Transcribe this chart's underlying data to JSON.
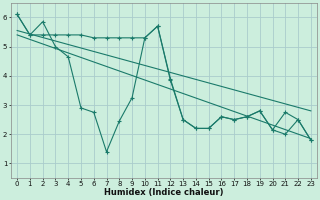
{
  "bg_color": "#cceedd",
  "grid_color": "#aacccc",
  "line_color": "#1a7a6a",
  "xlabel": "Humidex (Indice chaleur)",
  "xlim": [
    -0.5,
    23.5
  ],
  "ylim": [
    0.5,
    6.5
  ],
  "yticks": [
    1,
    2,
    3,
    4,
    5,
    6
  ],
  "xticks": [
    0,
    1,
    2,
    3,
    4,
    5,
    6,
    7,
    8,
    9,
    10,
    11,
    12,
    13,
    14,
    15,
    16,
    17,
    18,
    19,
    20,
    21,
    22,
    23
  ],
  "line1_x": [
    0,
    1,
    2,
    3,
    4,
    5,
    6,
    7,
    8,
    9,
    10,
    11,
    12,
    13,
    14,
    15,
    16,
    17,
    18,
    19,
    20,
    21,
    22,
    23
  ],
  "line1_y": [
    6.1,
    5.4,
    5.4,
    5.4,
    5.4,
    5.4,
    5.3,
    5.3,
    5.3,
    5.3,
    5.3,
    5.7,
    3.9,
    2.5,
    2.2,
    2.2,
    2.6,
    2.5,
    2.6,
    2.8,
    2.15,
    2.0,
    2.5,
    1.8
  ],
  "line2_x": [
    0,
    1,
    2,
    3,
    4,
    5,
    6,
    7,
    8,
    9,
    10,
    11,
    12,
    13,
    14,
    15,
    16,
    17,
    18,
    19,
    20,
    21,
    22,
    23
  ],
  "line2_y": [
    6.1,
    5.4,
    5.85,
    5.0,
    4.65,
    2.9,
    2.75,
    1.4,
    2.45,
    3.25,
    5.3,
    5.7,
    3.85,
    2.5,
    2.2,
    2.2,
    2.6,
    2.5,
    2.6,
    2.8,
    2.15,
    2.75,
    2.5,
    1.8
  ],
  "trend1_x": [
    0,
    23
  ],
  "trend1_y": [
    5.55,
    2.8
  ],
  "trend2_x": [
    0,
    23
  ],
  "trend2_y": [
    5.4,
    1.85
  ]
}
